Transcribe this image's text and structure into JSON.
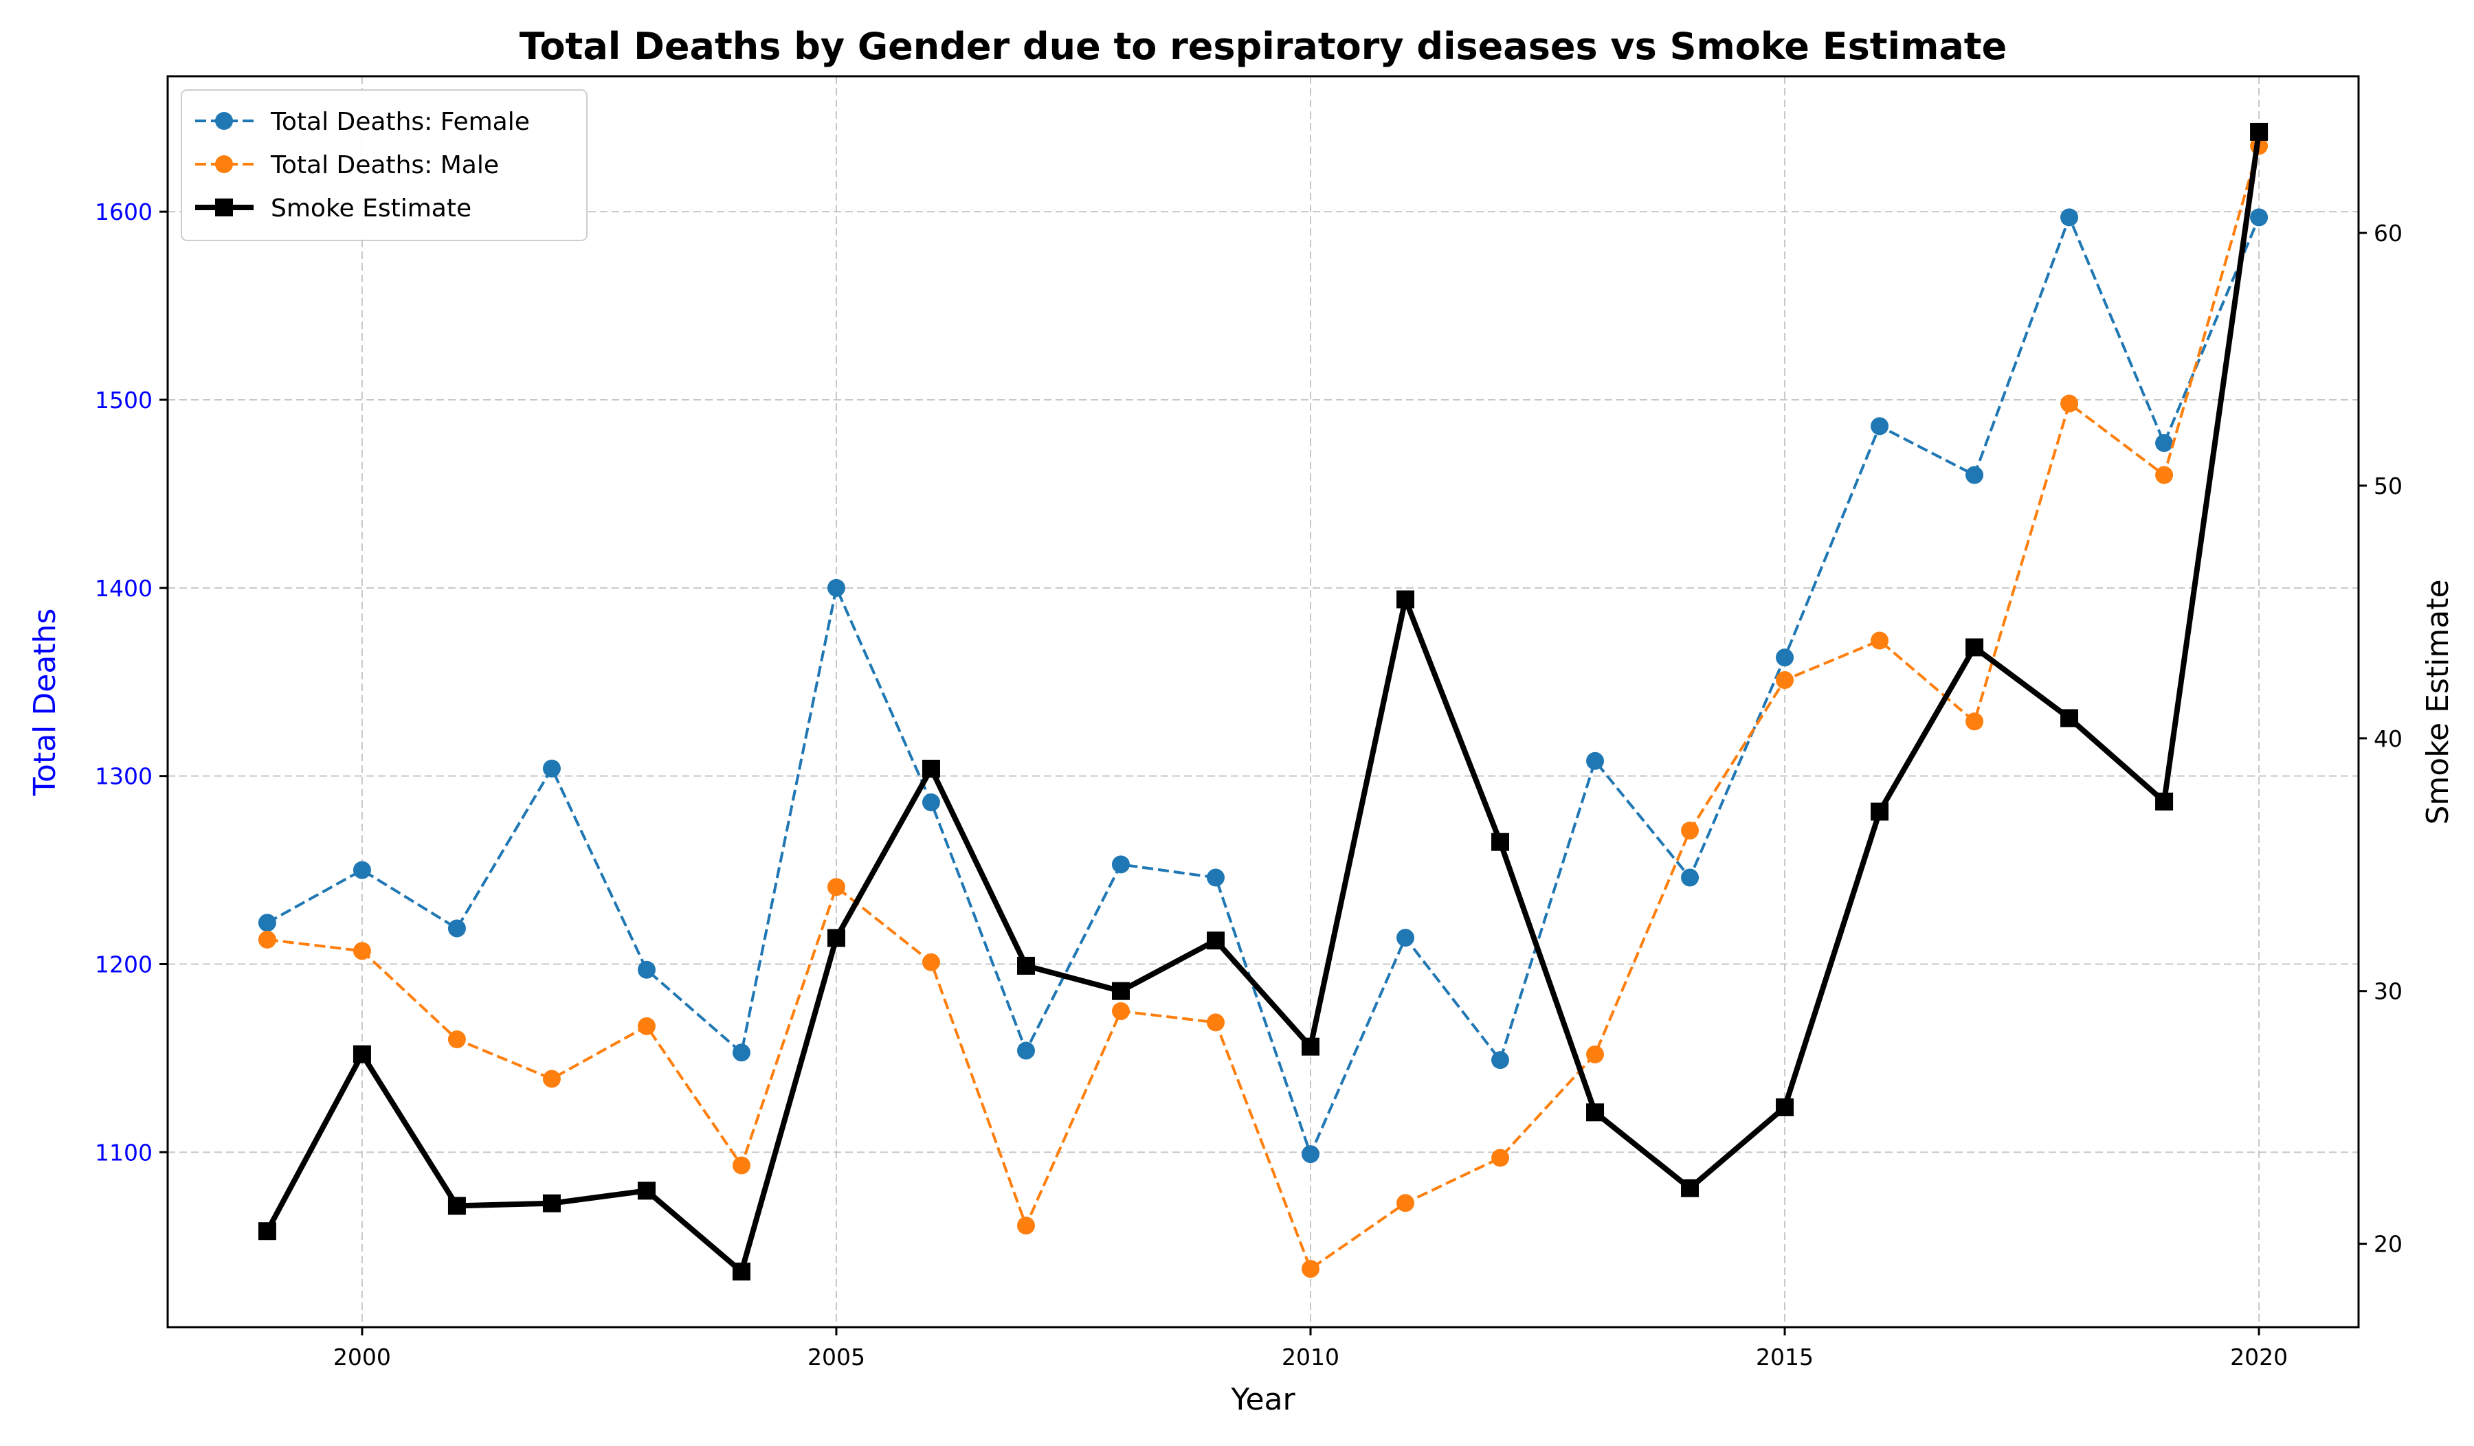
{
  "chart_data": {
    "type": "line",
    "title": "Total Deaths by Gender due to respiratory diseases vs Smoke Estimate",
    "xlabel": "Year",
    "ylabel": "Total Deaths",
    "y2label": "Smoke Estimate",
    "ylabel_color": "#0000ff",
    "x": [
      1999,
      2000,
      2001,
      2002,
      2003,
      2004,
      2005,
      2006,
      2007,
      2008,
      2009,
      2010,
      2011,
      2012,
      2013,
      2014,
      2015,
      2016,
      2017,
      2018,
      2019,
      2020
    ],
    "xlim": [
      1997.95,
      2021.05
    ],
    "ylim": [
      1007,
      1672
    ],
    "y2lim": [
      16.7,
      66.2
    ],
    "xticks": [
      2000,
      2005,
      2010,
      2015,
      2020
    ],
    "yticks": [
      1100,
      1200,
      1300,
      1400,
      1500,
      1600
    ],
    "y2ticks": [
      20,
      30,
      40,
      50,
      60
    ],
    "grid": true,
    "legend_position": "top-left",
    "series": [
      {
        "name": "Total Deaths: Female",
        "axis": "left",
        "color": "#1f77b4",
        "style": "dashed",
        "marker": "circle",
        "values": [
          1222,
          1250,
          1219,
          1304,
          1197,
          1153,
          1400,
          1286,
          1154,
          1253,
          1246,
          1099,
          1214,
          1149,
          1308,
          1246,
          1363,
          1486,
          1460,
          1597,
          1477,
          1597
        ]
      },
      {
        "name": "Total Deaths: Male",
        "axis": "left",
        "color": "#ff7f0e",
        "style": "dashed",
        "marker": "circle",
        "values": [
          1213,
          1207,
          1160,
          1139,
          1167,
          1093,
          1241,
          1201,
          1061,
          1175,
          1169,
          1038,
          1073,
          1097,
          1152,
          1271,
          1351,
          1372,
          1329,
          1498,
          1460,
          1635
        ]
      },
      {
        "name": "Smoke Estimate",
        "axis": "right",
        "color": "#000000",
        "style": "solid",
        "marker": "square",
        "values": [
          20.5,
          27.5,
          21.5,
          21.6,
          22.1,
          18.9,
          32.1,
          38.8,
          31.0,
          30.0,
          32.0,
          27.8,
          45.5,
          35.9,
          25.2,
          22.2,
          25.4,
          37.1,
          43.6,
          40.8,
          37.5,
          64.0
        ]
      }
    ]
  }
}
